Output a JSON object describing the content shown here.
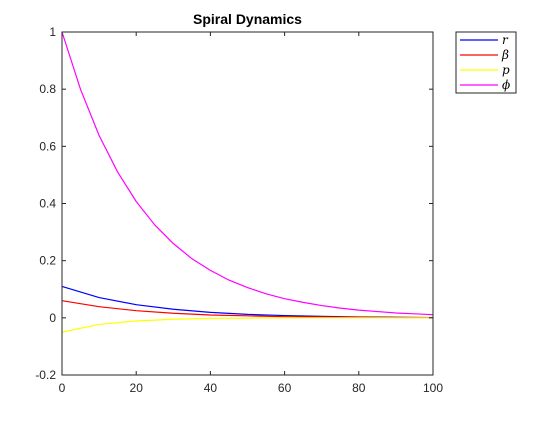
{
  "chart_data": {
    "type": "line",
    "title": "Spiral Dynamics",
    "xlabel": "",
    "ylabel": "",
    "xlim": [
      0,
      100
    ],
    "ylim": [
      -0.2,
      1
    ],
    "x_ticks": [
      "0",
      "20",
      "40",
      "60",
      "80",
      "100"
    ],
    "y_ticks": [
      "-0.2",
      "0",
      "0.2",
      "0.4",
      "0.6",
      "0.8",
      "1"
    ],
    "grid": false,
    "legend_position": "outside-top-right",
    "series": [
      {
        "name": "r",
        "color": "#0000ff",
        "x": [
          0,
          10,
          20,
          30,
          40,
          50,
          60,
          70,
          80,
          90,
          100
        ],
        "y": [
          0.11,
          0.071,
          0.046,
          0.03,
          0.019,
          0.012,
          0.008,
          0.005,
          0.003,
          0.002,
          0.001
        ]
      },
      {
        "name": "β",
        "color": "#ff0000",
        "x": [
          0,
          10,
          20,
          30,
          40,
          50,
          60,
          70,
          80,
          90,
          100
        ],
        "y": [
          0.06,
          0.039,
          0.025,
          0.016,
          0.01,
          0.007,
          0.004,
          0.003,
          0.002,
          0.001,
          0.001
        ]
      },
      {
        "name": "p",
        "color": "#ffff00",
        "x": [
          0,
          10,
          20,
          30,
          40,
          50,
          60,
          70,
          80,
          90,
          100
        ],
        "y": [
          -0.05,
          -0.023,
          -0.011,
          -0.005,
          -0.002,
          -0.001,
          0.0,
          0.0,
          0.0,
          0.0,
          0.0
        ]
      },
      {
        "name": "ϕ",
        "color": "#ff00ff",
        "x": [
          0,
          5,
          10,
          15,
          20,
          25,
          30,
          35,
          40,
          45,
          50,
          55,
          60,
          65,
          70,
          75,
          80,
          85,
          90,
          95,
          100
        ],
        "y": [
          1.0,
          0.799,
          0.638,
          0.51,
          0.407,
          0.325,
          0.26,
          0.207,
          0.166,
          0.132,
          0.106,
          0.084,
          0.067,
          0.054,
          0.043,
          0.034,
          0.027,
          0.022,
          0.017,
          0.014,
          0.011
        ]
      }
    ]
  }
}
